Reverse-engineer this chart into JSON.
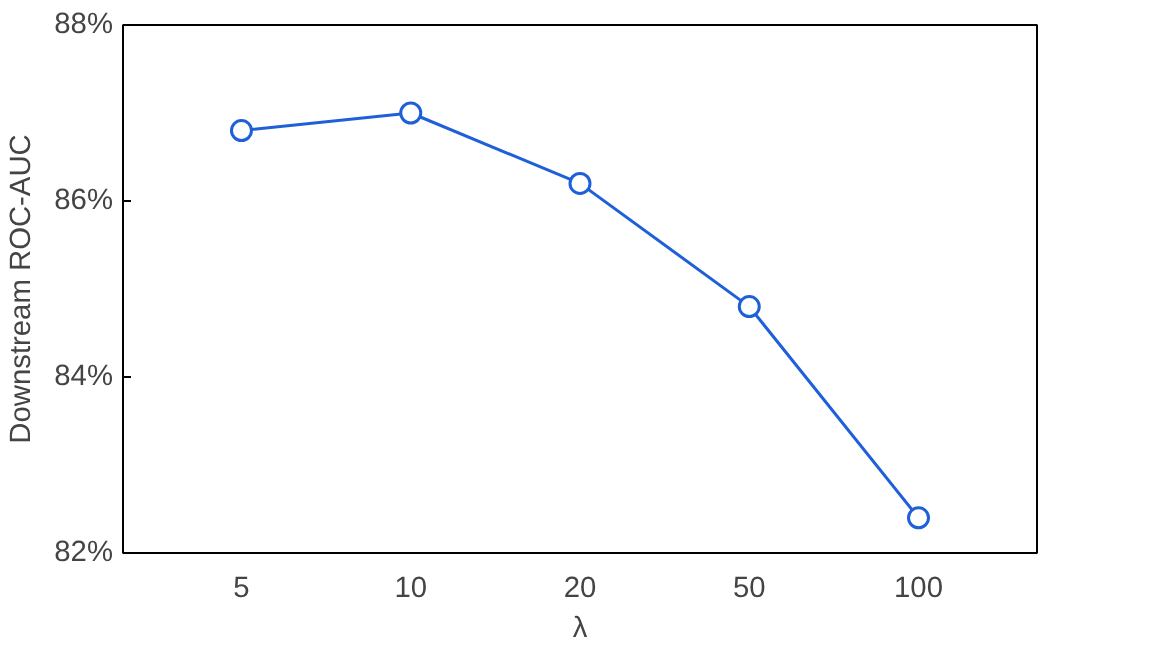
{
  "chart_data": {
    "type": "line",
    "xlabel": "λ",
    "ylabel": "Downstream ROC-AUC",
    "categories": [
      "5",
      "10",
      "20",
      "50",
      "100"
    ],
    "series": [
      {
        "color": "#1f5fd8",
        "values": [
          86.8,
          87.0,
          86.2,
          84.8,
          82.4
        ]
      }
    ],
    "ylim": [
      82,
      88
    ],
    "yticks": [
      {
        "value": 82,
        "label": "82%"
      },
      {
        "value": 84,
        "label": "84%"
      },
      {
        "value": 86,
        "label": "86%"
      },
      {
        "value": 88,
        "label": "88%"
      }
    ],
    "marker": "circle",
    "line_style": "solid",
    "grid": false
  }
}
